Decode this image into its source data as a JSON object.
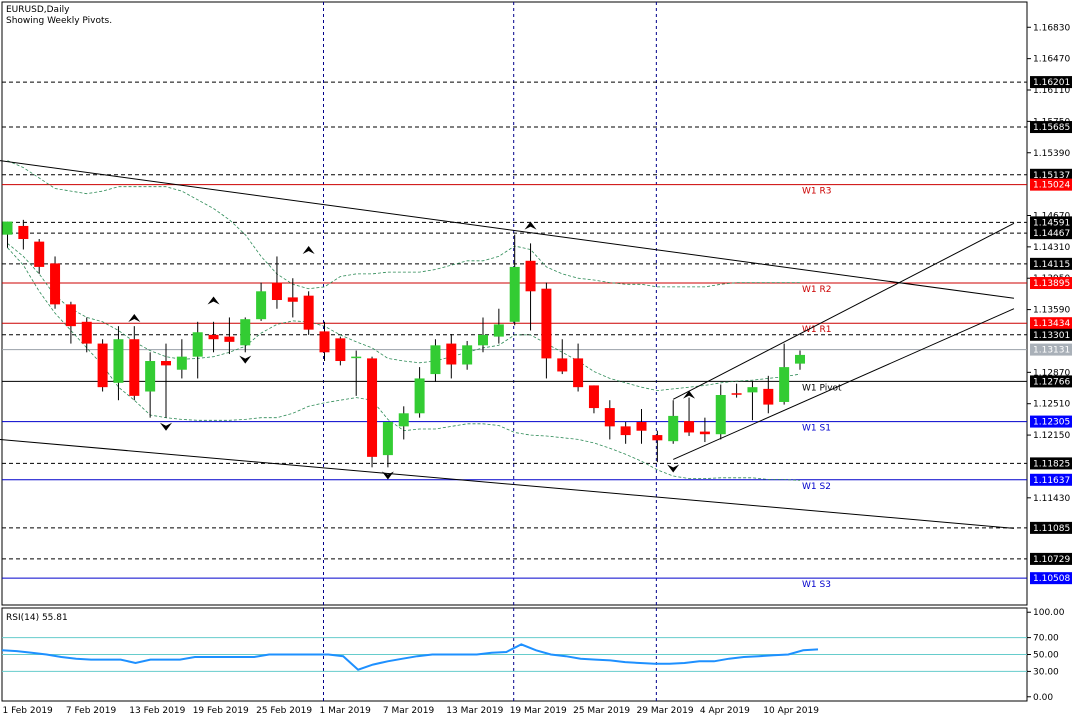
{
  "header": {
    "symbol": "EURUSD,Daily",
    "subtitle": "Showing Weekly Pivots."
  },
  "colors": {
    "bull": "#33cc33",
    "bear": "#ff0000",
    "pivot_red": "#cc0000",
    "pivot_blue": "#0000cc",
    "grid": "#000000",
    "band": "#2e8b57",
    "rsi_line": "#1e90ff",
    "rsi_levels": "#66cccc"
  },
  "chart_data": [
    {
      "type": "candlestick",
      "title": "EURUSD,Daily",
      "subtitle": "Showing Weekly Pivots.",
      "y_ticks": [
        "1.16830",
        "1.16470",
        "1.16110",
        "1.15750",
        "1.15390",
        "1.14670",
        "1.14310",
        "1.13950",
        "1.13590",
        "1.12870",
        "1.12510",
        "1.12150",
        "1.11430"
      ],
      "y_range": [
        1.102,
        1.1712
      ],
      "date_labels": [
        {
          "i": 0,
          "label": "1 Feb 2019"
        },
        {
          "i": 4,
          "label": "7 Feb 2019"
        },
        {
          "i": 8,
          "label": "13 Feb 2019"
        },
        {
          "i": 12,
          "label": "19 Feb 2019"
        },
        {
          "i": 16,
          "label": "25 Feb 2019"
        },
        {
          "i": 20,
          "label": "1 Mar 2019"
        },
        {
          "i": 24,
          "label": "7 Mar 2019"
        },
        {
          "i": 28,
          "label": "13 Mar 2019"
        },
        {
          "i": 32,
          "label": "19 Mar 2019"
        },
        {
          "i": 36,
          "label": "25 Mar 2019"
        },
        {
          "i": 40,
          "label": "29 Mar 2019"
        },
        {
          "i": 44,
          "label": "4 Apr 2019"
        },
        {
          "i": 48,
          "label": "10 Apr 2019"
        }
      ],
      "week_separators": [
        20,
        32,
        41
      ],
      "candles": [
        {
          "o": 1.1445,
          "h": 1.146,
          "l": 1.143,
          "c": 1.146
        },
        {
          "o": 1.1455,
          "h": 1.1462,
          "l": 1.1428,
          "c": 1.144
        },
        {
          "o": 1.1437,
          "h": 1.144,
          "l": 1.14,
          "c": 1.1408
        },
        {
          "o": 1.1412,
          "h": 1.142,
          "l": 1.136,
          "c": 1.1365
        },
        {
          "o": 1.1365,
          "h": 1.1368,
          "l": 1.132,
          "c": 1.134
        },
        {
          "o": 1.1345,
          "h": 1.135,
          "l": 1.131,
          "c": 1.132
        },
        {
          "o": 1.132,
          "h": 1.1325,
          "l": 1.1265,
          "c": 1.127
        },
        {
          "o": 1.1275,
          "h": 1.134,
          "l": 1.1255,
          "c": 1.1325
        },
        {
          "o": 1.1325,
          "h": 1.134,
          "l": 1.1255,
          "c": 1.126
        },
        {
          "o": 1.1265,
          "h": 1.131,
          "l": 1.1235,
          "c": 1.13
        },
        {
          "o": 1.13,
          "h": 1.132,
          "l": 1.1235,
          "c": 1.1295
        },
        {
          "o": 1.129,
          "h": 1.1325,
          "l": 1.128,
          "c": 1.1305
        },
        {
          "o": 1.1305,
          "h": 1.1345,
          "l": 1.128,
          "c": 1.1333
        },
        {
          "o": 1.133,
          "h": 1.1345,
          "l": 1.131,
          "c": 1.1325
        },
        {
          "o": 1.1328,
          "h": 1.135,
          "l": 1.1308,
          "c": 1.1322
        },
        {
          "o": 1.1318,
          "h": 1.135,
          "l": 1.131,
          "c": 1.1348
        },
        {
          "o": 1.1348,
          "h": 1.139,
          "l": 1.1346,
          "c": 1.138
        },
        {
          "o": 1.139,
          "h": 1.142,
          "l": 1.136,
          "c": 1.137
        },
        {
          "o": 1.1373,
          "h": 1.1395,
          "l": 1.135,
          "c": 1.1368
        },
        {
          "o": 1.1375,
          "h": 1.138,
          "l": 1.133,
          "c": 1.1336
        },
        {
          "o": 1.1334,
          "h": 1.1345,
          "l": 1.13,
          "c": 1.131
        },
        {
          "o": 1.1326,
          "h": 1.1328,
          "l": 1.1295,
          "c": 1.13
        },
        {
          "o": 1.1305,
          "h": 1.1312,
          "l": 1.126,
          "c": 1.1305
        },
        {
          "o": 1.1303,
          "h": 1.1305,
          "l": 1.1178,
          "c": 1.119
        },
        {
          "o": 1.1192,
          "h": 1.123,
          "l": 1.1178,
          "c": 1.123
        },
        {
          "o": 1.1225,
          "h": 1.1248,
          "l": 1.121,
          "c": 1.124
        },
        {
          "o": 1.124,
          "h": 1.1293,
          "l": 1.1235,
          "c": 1.128
        },
        {
          "o": 1.1285,
          "h": 1.1325,
          "l": 1.1276,
          "c": 1.1318
        },
        {
          "o": 1.132,
          "h": 1.1331,
          "l": 1.128,
          "c": 1.1296
        },
        {
          "o": 1.1296,
          "h": 1.1323,
          "l": 1.129,
          "c": 1.1318
        },
        {
          "o": 1.1318,
          "h": 1.135,
          "l": 1.131,
          "c": 1.133
        },
        {
          "o": 1.1328,
          "h": 1.136,
          "l": 1.132,
          "c": 1.1342
        },
        {
          "o": 1.1345,
          "h": 1.1445,
          "l": 1.1341,
          "c": 1.1408
        },
        {
          "o": 1.1415,
          "h": 1.1435,
          "l": 1.1335,
          "c": 1.138
        },
        {
          "o": 1.1383,
          "h": 1.139,
          "l": 1.128,
          "c": 1.1303
        },
        {
          "o": 1.1303,
          "h": 1.1325,
          "l": 1.1285,
          "c": 1.1288
        },
        {
          "o": 1.1303,
          "h": 1.132,
          "l": 1.1265,
          "c": 1.127
        },
        {
          "o": 1.1272,
          "h": 1.1272,
          "l": 1.124,
          "c": 1.1246
        },
        {
          "o": 1.1246,
          "h": 1.1255,
          "l": 1.121,
          "c": 1.1225
        },
        {
          "o": 1.1225,
          "h": 1.123,
          "l": 1.1205,
          "c": 1.1215
        },
        {
          "o": 1.123,
          "h": 1.1245,
          "l": 1.1205,
          "c": 1.122
        },
        {
          "o": 1.1215,
          "h": 1.122,
          "l": 1.1184,
          "c": 1.1209
        },
        {
          "o": 1.1208,
          "h": 1.1255,
          "l": 1.1205,
          "c": 1.1237
        },
        {
          "o": 1.1231,
          "h": 1.1258,
          "l": 1.1214,
          "c": 1.1218
        },
        {
          "o": 1.1219,
          "h": 1.1235,
          "l": 1.1207,
          "c": 1.1216
        },
        {
          "o": 1.1216,
          "h": 1.1273,
          "l": 1.121,
          "c": 1.1261
        },
        {
          "o": 1.1263,
          "h": 1.1274,
          "l": 1.1258,
          "c": 1.1262
        },
        {
          "o": 1.1264,
          "h": 1.1277,
          "l": 1.1232,
          "c": 1.127
        },
        {
          "o": 1.1268,
          "h": 1.1283,
          "l": 1.124,
          "c": 1.125
        },
        {
          "o": 1.1253,
          "h": 1.132,
          "l": 1.125,
          "c": 1.1293
        },
        {
          "o": 1.1297,
          "h": 1.1312,
          "l": 1.129,
          "c": 1.1307
        }
      ],
      "horizontal_levels": [
        {
          "value": 1.16201,
          "label": "1.16201",
          "kind": "dashed"
        },
        {
          "value": 1.15685,
          "label": "1.15685",
          "kind": "dashed"
        },
        {
          "value": 1.15137,
          "label": "1.15137",
          "kind": "dashed"
        },
        {
          "value": 1.15024,
          "label": "1.15024",
          "kind": "red",
          "name": "W1 R3"
        },
        {
          "value": 1.14591,
          "label": "1.14591",
          "kind": "dashed"
        },
        {
          "value": 1.14467,
          "label": "1.14467",
          "kind": "dashed"
        },
        {
          "value": 1.14115,
          "label": "1.14115",
          "kind": "dashed"
        },
        {
          "value": 1.13895,
          "label": "1.13895",
          "kind": "red",
          "name": "W1 R2"
        },
        {
          "value": 1.13434,
          "label": "1.13434",
          "kind": "red",
          "name": "W1 R1"
        },
        {
          "value": 1.13301,
          "label": "1.13301",
          "kind": "dashed"
        },
        {
          "value": 1.13131,
          "label": "1.13131",
          "kind": "current"
        },
        {
          "value": 1.12766,
          "label": "1.12766",
          "kind": "black",
          "name": "W1 Pivot"
        },
        {
          "value": 1.12305,
          "label": "1.12305",
          "kind": "blue",
          "name": "W1 S1"
        },
        {
          "value": 1.11825,
          "label": "1.11825",
          "kind": "dashed"
        },
        {
          "value": 1.11637,
          "label": "1.11637",
          "kind": "blue",
          "name": "W1 S2"
        },
        {
          "value": 1.11085,
          "label": "1.11085",
          "kind": "dashed"
        },
        {
          "value": 1.10729,
          "label": "1.10729",
          "kind": "dashed"
        },
        {
          "value": 1.10508,
          "label": "1.10508",
          "kind": "blue",
          "name": "W1 S3"
        }
      ],
      "trendlines": [
        {
          "from": {
            "i": -0.5,
            "v": 1.153
          },
          "to": {
            "i": 63.5,
            "v": 1.1372
          }
        },
        {
          "from": {
            "i": -0.5,
            "v": 1.121
          },
          "to": {
            "i": 63.5,
            "v": 1.1108
          }
        },
        {
          "from": {
            "i": 42,
            "v": 1.1256
          },
          "to": {
            "i": 63.5,
            "v": 1.1458
          }
        },
        {
          "from": {
            "i": 42,
            "v": 1.1187
          },
          "to": {
            "i": 63.5,
            "v": 1.136
          }
        }
      ],
      "fractal_arrows": [
        {
          "i": 8,
          "v": 1.1354,
          "dir": "up"
        },
        {
          "i": 10,
          "v": 1.122,
          "dir": "down"
        },
        {
          "i": 13,
          "v": 1.1374,
          "dir": "up"
        },
        {
          "i": 15,
          "v": 1.1297,
          "dir": "down"
        },
        {
          "i": 19,
          "v": 1.1432,
          "dir": "up"
        },
        {
          "i": 24,
          "v": 1.1164,
          "dir": "down"
        },
        {
          "i": 33,
          "v": 1.146,
          "dir": "up"
        },
        {
          "i": 42,
          "v": 1.1172,
          "dir": "down"
        },
        {
          "i": 43,
          "v": 1.1266,
          "dir": "up"
        }
      ],
      "band_upper": [
        1.153,
        1.1522,
        1.151,
        1.1498,
        1.1495,
        1.1492,
        1.1495,
        1.15,
        1.15,
        1.15,
        1.15,
        1.1495,
        1.1485,
        1.1475,
        1.1462,
        1.1445,
        1.142,
        1.14,
        1.1388,
        1.1383,
        1.1385,
        1.1397,
        1.14,
        1.14,
        1.1402,
        1.1402,
        1.1402,
        1.1405,
        1.141,
        1.1415,
        1.1415,
        1.142,
        1.1432,
        1.1428,
        1.1408,
        1.14,
        1.1395,
        1.1393,
        1.139,
        1.1388,
        1.1388,
        1.1385,
        1.1385,
        1.1385,
        1.1385,
        1.1388,
        1.139,
        1.139,
        1.139,
        1.139,
        1.139
      ],
      "band_lower": [
        1.143,
        1.141,
        1.138,
        1.1355,
        1.1335,
        1.1315,
        1.1295,
        1.127,
        1.1255,
        1.1238,
        1.1235,
        1.1233,
        1.1232,
        1.1232,
        1.1232,
        1.1233,
        1.1235,
        1.1235,
        1.124,
        1.1248,
        1.1252,
        1.1255,
        1.1258,
        1.1255,
        1.1233,
        1.122,
        1.1222,
        1.1222,
        1.1225,
        1.1228,
        1.1228,
        1.1226,
        1.1218,
        1.1215,
        1.1214,
        1.1212,
        1.121,
        1.1206,
        1.12,
        1.1193,
        1.1185,
        1.1175,
        1.1168,
        1.1165,
        1.1165,
        1.1166,
        1.1166,
        1.1166,
        1.1164,
        1.1164,
        1.1163
      ],
      "band_middle": [
        1.1435,
        1.142,
        1.14,
        1.1375,
        1.136,
        1.135,
        1.1345,
        1.1335,
        1.1322,
        1.1312,
        1.1305,
        1.1302,
        1.1303,
        1.1305,
        1.131,
        1.1317,
        1.1332,
        1.1342,
        1.1346,
        1.1345,
        1.134,
        1.133,
        1.1322,
        1.1315,
        1.1303,
        1.13,
        1.1298,
        1.13,
        1.1305,
        1.131,
        1.1315,
        1.1318,
        1.133,
        1.133,
        1.132,
        1.131,
        1.13,
        1.1288,
        1.128,
        1.1275,
        1.127,
        1.1266,
        1.1268,
        1.127,
        1.1272,
        1.1275,
        1.1277,
        1.1278,
        1.128,
        1.1282,
        1.1285
      ]
    },
    {
      "type": "line",
      "title": "RSI(14) 55.81",
      "y_range": [
        -5,
        105
      ],
      "y_ticks": [
        "100.00",
        "70.00",
        "50.00",
        "30.00",
        "0.00"
      ],
      "levels": [
        70,
        50,
        30
      ],
      "values": [
        55,
        54,
        52,
        50,
        47,
        45,
        44,
        44,
        44,
        40,
        44,
        44,
        44,
        47,
        47,
        47,
        47,
        47,
        50,
        50,
        50,
        50,
        50,
        48,
        32,
        38,
        42,
        45,
        48,
        50,
        50,
        50,
        50,
        52,
        53,
        62,
        55,
        50,
        48,
        45,
        44,
        43,
        41,
        40,
        39,
        39,
        40,
        42,
        42,
        45,
        47,
        48,
        49,
        50,
        55,
        56
      ]
    }
  ]
}
